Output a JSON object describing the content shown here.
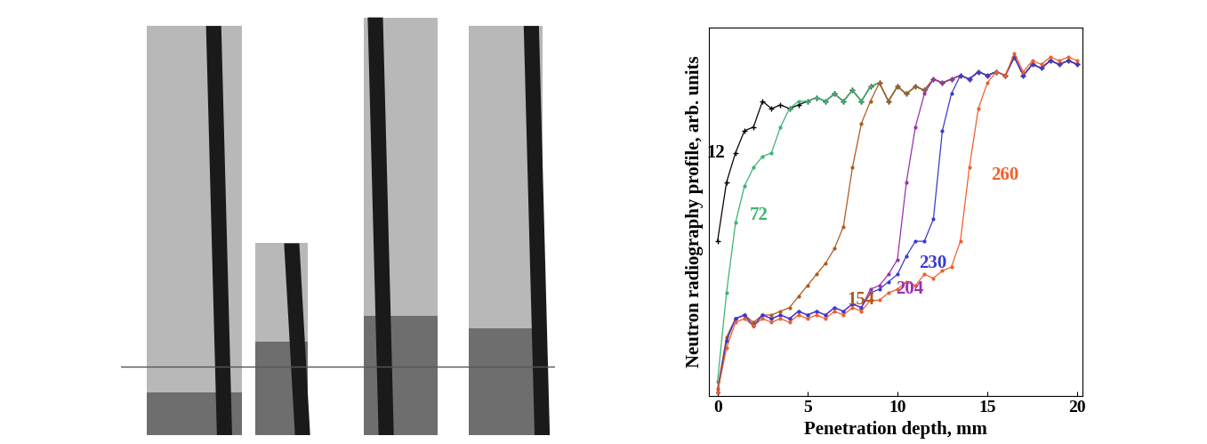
{
  "chart_data": {
    "type": "line",
    "x_label": "Penetration depth, mm",
    "y_label": "Neutron radiography profile, arb. units",
    "x": [
      0,
      0.5,
      1,
      1.5,
      2,
      2.5,
      3,
      3.5,
      4,
      4.5,
      5,
      5.5,
      6,
      6.5,
      7,
      7.5,
      8,
      8.5,
      9,
      9.5,
      10,
      10.5,
      11,
      11.5,
      12,
      12.5,
      13,
      13.5,
      14,
      14.5,
      15,
      15.5,
      16,
      16.5,
      17,
      17.5,
      18,
      18.5,
      19,
      19.5,
      20
    ],
    "xlim": [
      -0.5,
      20.3
    ],
    "xticks": [
      0,
      5,
      10,
      15,
      20
    ],
    "ylim": [
      0,
      100
    ],
    "tick_labels": "x",
    "series": [
      {
        "name": "12",
        "color": "#000000",
        "marker": "plus",
        "values": [
          42,
          58,
          66,
          72,
          73,
          80,
          78,
          79,
          78,
          79,
          80,
          81,
          80,
          82,
          80,
          83,
          80,
          84,
          85,
          80,
          84,
          82,
          84,
          83,
          86,
          85,
          86,
          87,
          86,
          88,
          87,
          88,
          87,
          92,
          87,
          90,
          89,
          91,
          90,
          91,
          90
        ]
      },
      {
        "name": "72",
        "color": "#3cb371",
        "marker": "dot",
        "values": [
          4,
          28,
          47,
          57,
          62,
          65,
          66,
          73,
          78,
          80,
          80,
          81,
          80,
          82,
          80,
          83,
          80,
          84,
          85,
          80,
          84,
          82,
          84,
          83,
          86,
          85,
          86,
          87,
          86,
          88,
          87,
          88,
          87,
          92,
          87,
          90,
          89,
          91,
          90,
          91,
          90
        ]
      },
      {
        "name": "154",
        "color": "#b05a1e",
        "marker": "dot",
        "values": [
          2,
          16,
          21,
          22,
          20,
          22,
          22,
          23,
          24,
          27,
          30,
          33,
          36,
          40,
          46,
          62,
          74,
          80,
          85,
          80,
          84,
          82,
          84,
          83,
          86,
          85,
          86,
          87,
          86,
          88,
          87,
          88,
          87,
          92,
          87,
          90,
          89,
          91,
          90,
          91,
          90
        ]
      },
      {
        "name": "204",
        "color": "#9b30b0",
        "marker": "dot",
        "values": [
          1,
          15,
          21,
          22,
          19,
          22,
          21,
          22,
          21,
          23,
          22,
          23,
          22,
          24,
          23,
          25,
          24,
          29,
          30,
          33,
          37,
          58,
          73,
          82,
          86,
          85,
          86,
          87,
          86,
          88,
          87,
          88,
          87,
          92,
          87,
          90,
          89,
          91,
          90,
          91,
          90
        ]
      },
      {
        "name": "230",
        "color": "#3a3ad0",
        "marker": "dot",
        "values": [
          1,
          15,
          21,
          22,
          19,
          22,
          21,
          22,
          21,
          23,
          22,
          23,
          22,
          24,
          23,
          25,
          24,
          28,
          29,
          31,
          33,
          38,
          42,
          42,
          48,
          72,
          82,
          87,
          86,
          88,
          87,
          88,
          87,
          92,
          87,
          90,
          89,
          91,
          90,
          91,
          90
        ]
      },
      {
        "name": "260",
        "color": "#f0602a",
        "marker": "dot",
        "values": [
          1,
          13,
          20,
          21,
          19,
          21,
          20,
          21,
          20,
          22,
          21,
          22,
          21,
          23,
          22,
          24,
          23,
          26,
          26,
          28,
          29,
          31,
          30,
          33,
          32,
          34,
          35,
          42,
          62,
          78,
          85,
          88,
          87,
          93,
          88,
          91,
          90,
          92,
          91,
          92,
          91
        ]
      }
    ]
  }
}
